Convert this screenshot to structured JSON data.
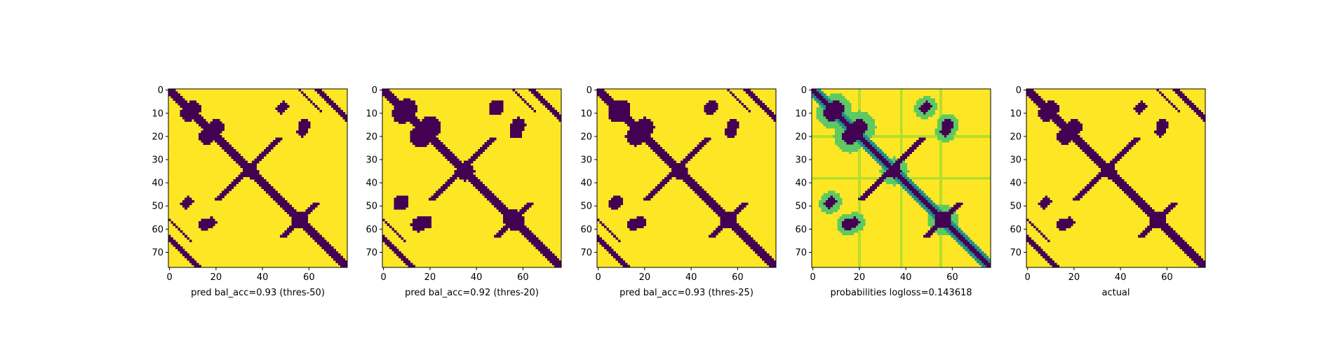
{
  "chart_data": [
    {
      "type": "heatmap",
      "xlabel": "pred bal_acc=0.93 (thres-50)",
      "xticks": [
        0,
        20,
        40,
        60
      ],
      "yticks": [
        0,
        10,
        20,
        30,
        40,
        50,
        60,
        70
      ],
      "matrix_size": 77,
      "value_range": [
        0,
        1
      ],
      "colormap": "viridis",
      "binary": true,
      "variant": "t50"
    },
    {
      "type": "heatmap",
      "xlabel": "pred bal_acc=0.92 (thres-20)",
      "xticks": [
        0,
        20,
        40,
        60
      ],
      "yticks": [
        0,
        10,
        20,
        30,
        40,
        50,
        60,
        70
      ],
      "matrix_size": 77,
      "value_range": [
        0,
        1
      ],
      "colormap": "viridis",
      "binary": true,
      "variant": "t20"
    },
    {
      "type": "heatmap",
      "xlabel": "pred bal_acc=0.93 (thres-25)",
      "xticks": [
        0,
        20,
        40,
        60
      ],
      "yticks": [
        0,
        10,
        20,
        30,
        40,
        50,
        60,
        70
      ],
      "matrix_size": 77,
      "value_range": [
        0,
        1
      ],
      "colormap": "viridis",
      "binary": true,
      "variant": "t25"
    },
    {
      "type": "heatmap",
      "xlabel": "probabilities logloss=0.143618",
      "xticks": [
        0,
        20,
        40,
        60
      ],
      "yticks": [
        0,
        10,
        20,
        30,
        40,
        50,
        60,
        70
      ],
      "matrix_size": 77,
      "value_range": [
        0,
        1
      ],
      "colormap": "viridis",
      "binary": false,
      "variant": "prob"
    },
    {
      "type": "heatmap",
      "xlabel": "actual",
      "xticks": [
        0,
        20,
        40,
        60
      ],
      "yticks": [
        0,
        10,
        20,
        30,
        40,
        50,
        60,
        70
      ],
      "matrix_size": 77,
      "value_range": [
        0,
        1
      ],
      "colormap": "viridis",
      "binary": true,
      "variant": "actual"
    }
  ],
  "colors": {
    "low": "#440154",
    "high": "#fde725",
    "mid1": "#21918c",
    "mid2": "#5ec962",
    "mid3": "#b5de2b"
  }
}
